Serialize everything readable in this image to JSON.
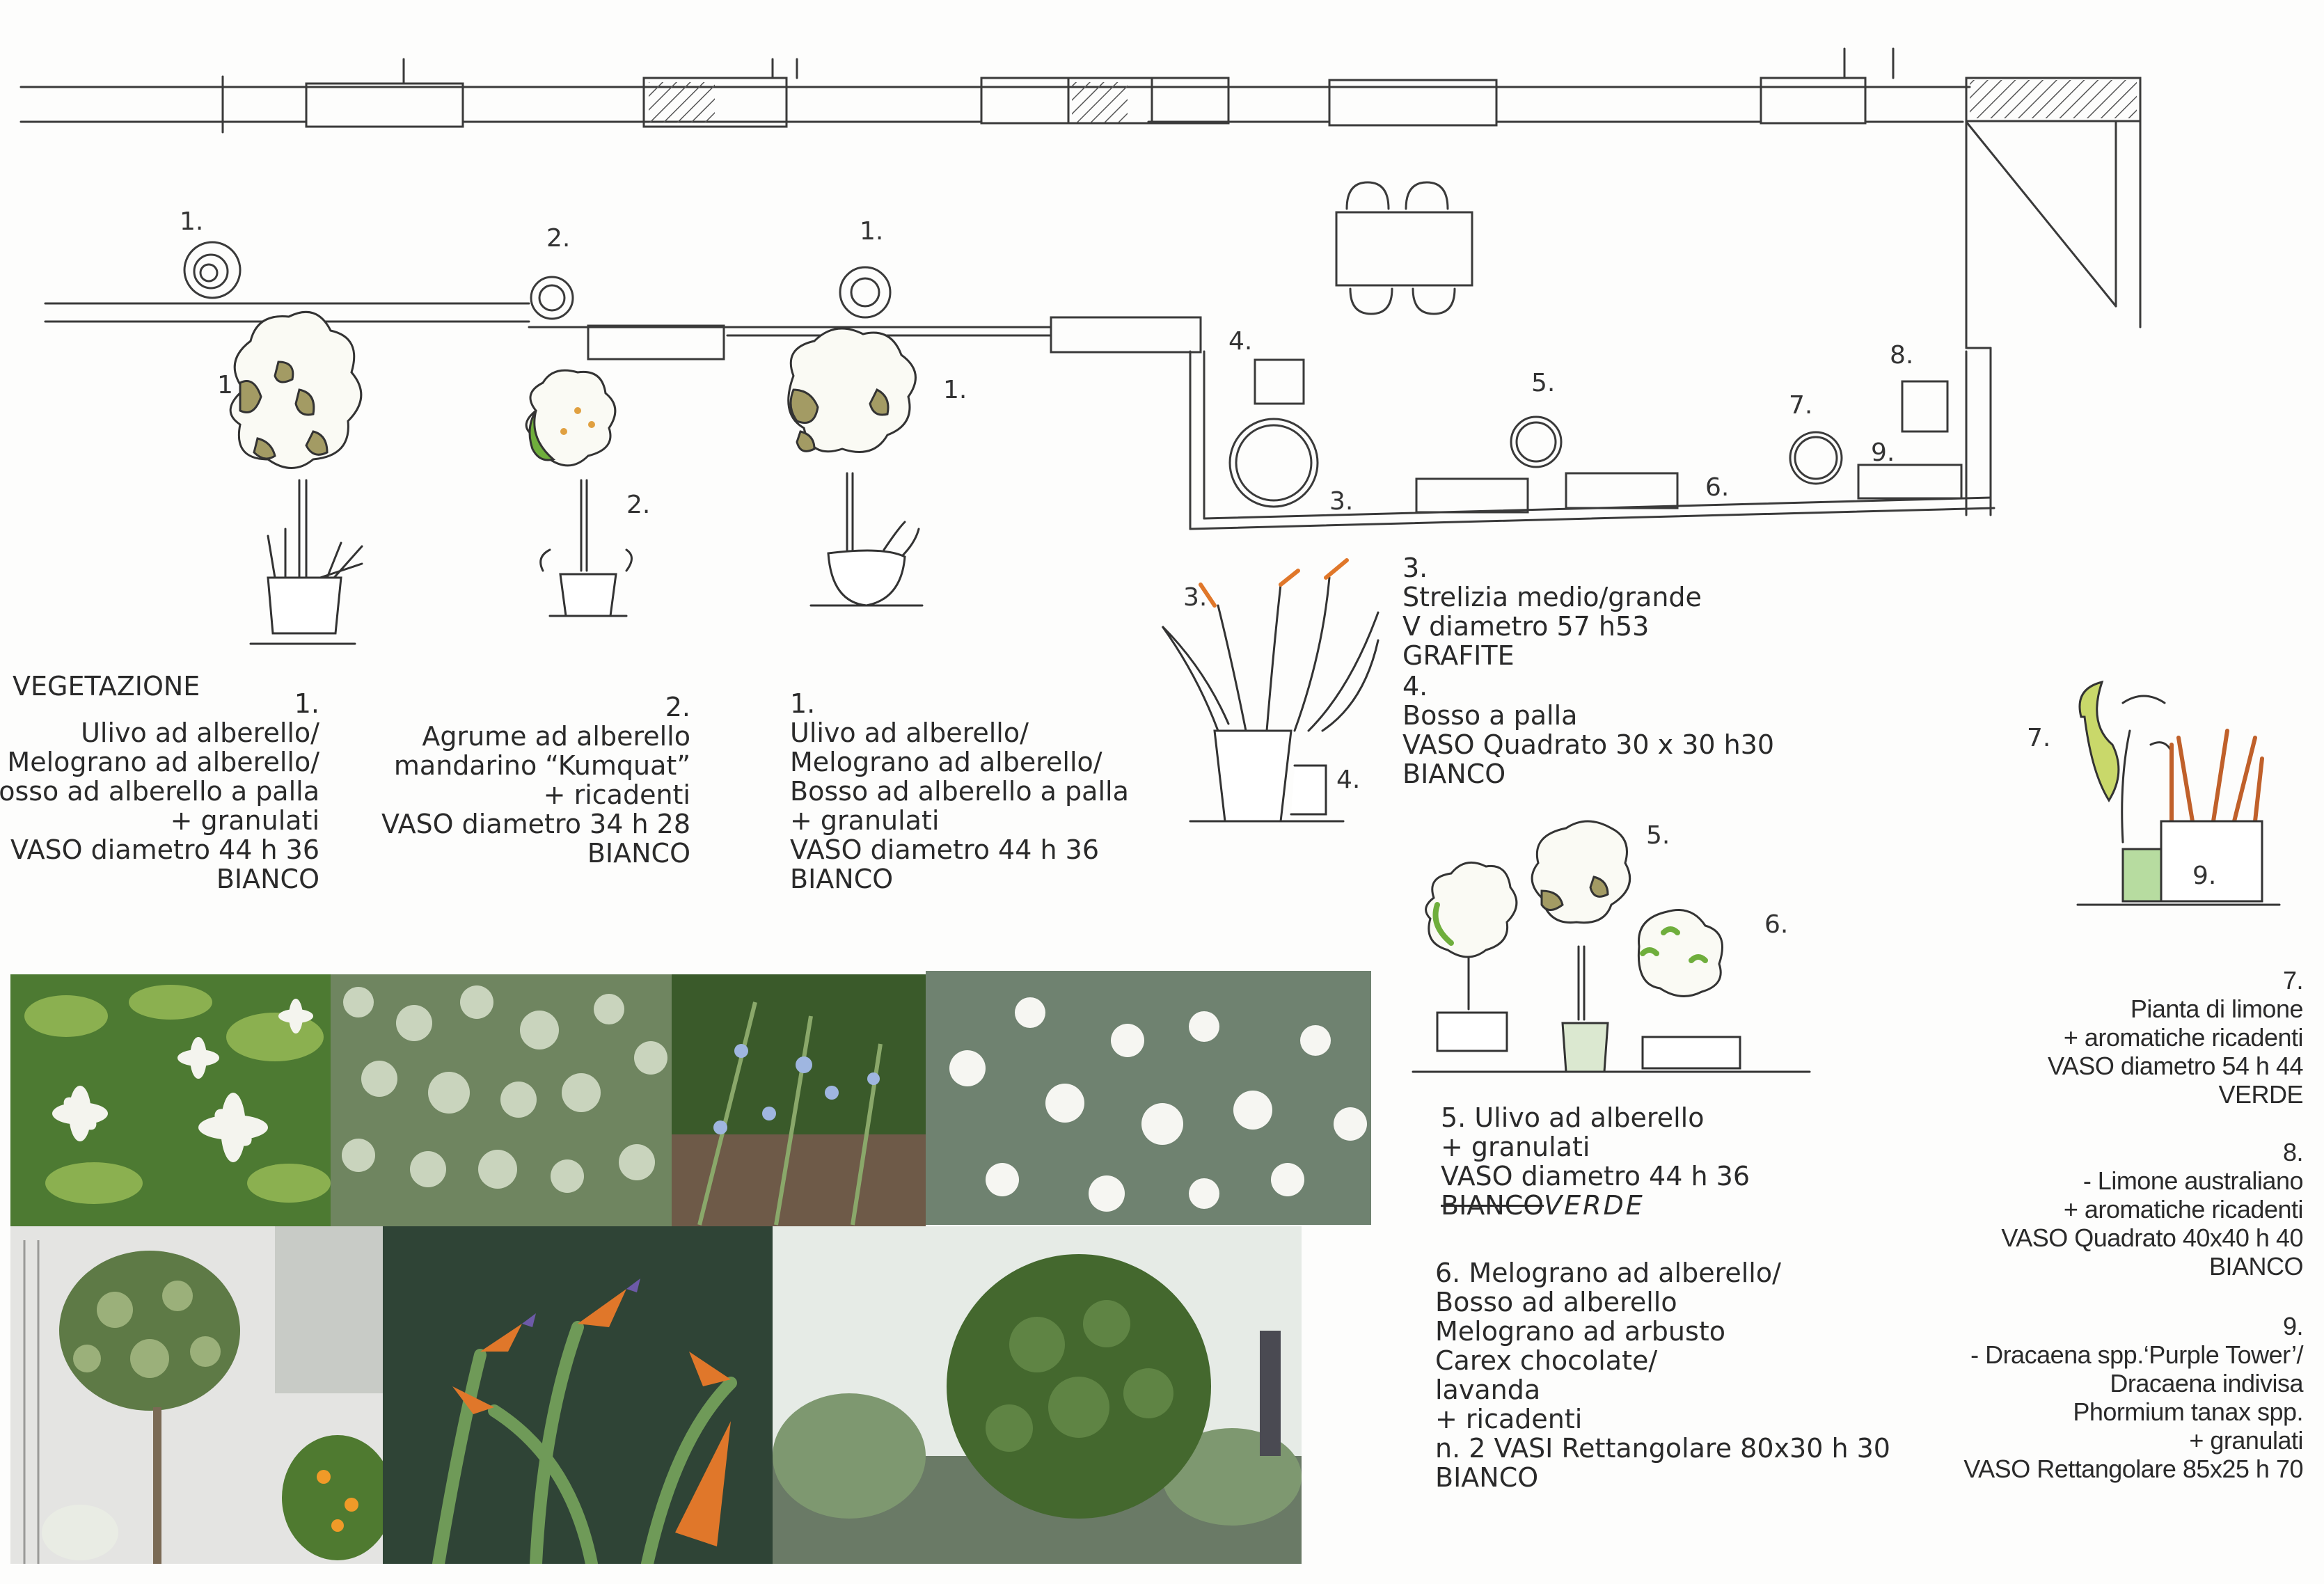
{
  "plan_labels": {
    "p1a": "1.",
    "p2a": "2.",
    "p1b": "1.",
    "s1a": "1",
    "s2a": "2.",
    "s1b": "1.",
    "p4": "4.",
    "p3": "3.",
    "p5": "5.",
    "p6": "6.",
    "p7": "7.",
    "p8": "8.",
    "p9": "9.",
    "s3": "3.",
    "s4": "4.",
    "s5": "5.",
    "s6": "6.",
    "s7": "7.",
    "s9": "9."
  },
  "heading": "VEGETAZIONE",
  "legend1": {
    "num": "1.",
    "lines": [
      "Ulivo ad alberello/",
      "Melograno ad alberello/",
      "Bosso ad alberello a palla",
      "+ granulati",
      "VASO diametro 44 h 36",
      "BIANCO"
    ]
  },
  "legend2": {
    "num": "2.",
    "lines": [
      "Agrume ad alberello",
      "mandarino “Kumquat”",
      "+ ricadenti",
      "VASO diametro 34 h 28",
      "BIANCO"
    ]
  },
  "legend1b": {
    "num": "1.",
    "lines": [
      "Ulivo ad alberello/",
      "Melograno ad alberello/",
      "Bosso ad alberello a palla",
      "+ granulati",
      "VASO diametro 44 h 36",
      "BIANCO"
    ]
  },
  "legend3": {
    "num": "3.",
    "lines": [
      "Strelizia medio/grande",
      " V diametro 57 h53",
      "GRAFITE"
    ]
  },
  "legend4": {
    "num": "4.",
    "lines": [
      "Bosso a palla",
      "VASO Quadrato 30 x 30  h30",
      "BIANCO"
    ]
  },
  "legend5": {
    "lines": [
      "5. Ulivo ad alberello",
      " + granulati",
      "VASO diametro 44 h 36"
    ],
    "struck": "BIANCO",
    "correction": "VERDE"
  },
  "legend6": {
    "lines": [
      "6. Melograno ad alberello/",
      "Bosso ad alberello",
      "Melograno ad arbusto",
      "Carex chocolate/",
      "lavanda",
      "+  ricadenti",
      "n. 2 VASI Rettangolare 80x30  h 30",
      "BIANCO"
    ]
  },
  "legend7": {
    "num": "7.",
    "lines": [
      "Pianta di limone",
      "+ aromatiche ricadenti",
      "VASO diametro 54 h 44",
      "VERDE"
    ]
  },
  "legend8": {
    "num": "8.",
    "lines": [
      "- Limone australiano",
      "+ aromatiche ricadenti",
      "VASO Quadrato 40x40 h 40",
      "BIANCO"
    ]
  },
  "legend9": {
    "num": "9.",
    "lines": [
      "- Dracaena spp.‘Purple Tower’/",
      "Dracaena indivisa",
      "Phormium tanax spp.",
      "+ granulati",
      "VASO Rettangolare 85x25 h 70"
    ]
  },
  "colors": {
    "ink": "#2a2a2a",
    "olive": "#a39b64",
    "leaf_green": "#6fae3c",
    "strelitzia_orange": "#e0772a"
  },
  "photos": [
    "white-jasmine-flowers-photo",
    "silver-thyme-foliage-photo",
    "rosemary-blue-flowers-photo",
    "white-convolvulus-flowers-photo",
    "olive-standard-tree-photo",
    "strelitzia-bird-of-paradise-photo",
    "boxwood-ball-topiary-photo"
  ]
}
